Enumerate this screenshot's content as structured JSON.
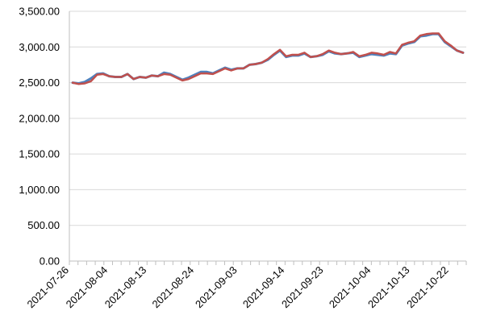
{
  "chart_data": {
    "type": "line",
    "title": "",
    "xlabel": "",
    "ylabel": "",
    "ylim": [
      0,
      3500
    ],
    "yticks": [
      0,
      500,
      1000,
      1500,
      2000,
      2500,
      3000,
      3500
    ],
    "ytick_labels": [
      "0.00",
      "500.00",
      "1,000.00",
      "1,500.00",
      "2,000.00",
      "2,500.00",
      "3,000.00",
      "3,500.00"
    ],
    "x_tick_labels": [
      "2021-07-26",
      "2021-08-04",
      "2021-08-13",
      "2021-08-24",
      "2021-09-03",
      "2021-09-14",
      "2021-09-23",
      "2021-10-04",
      "2021-10-13",
      "2021-10-22"
    ],
    "grid": {
      "y": true,
      "x": false
    },
    "legend": "none",
    "x_start": "2021-07-26",
    "x_end": "2021-10-26",
    "series": [
      {
        "color": "#4F81BD",
        "values": [
          2500,
          2490,
          2510,
          2560,
          2620,
          2630,
          2590,
          2580,
          2580,
          2620,
          2550,
          2580,
          2570,
          2600,
          2590,
          2640,
          2620,
          2580,
          2540,
          2570,
          2610,
          2650,
          2650,
          2630,
          2670,
          2710,
          2680,
          2700,
          2700,
          2750,
          2760,
          2780,
          2820,
          2890,
          2950,
          2860,
          2880,
          2880,
          2910,
          2860,
          2870,
          2890,
          2940,
          2910,
          2900,
          2910,
          2920,
          2860,
          2880,
          2900,
          2890,
          2880,
          2910,
          2900,
          3020,
          3050,
          3070,
          3150,
          3160,
          3180,
          3180,
          3070,
          3010,
          2950,
          2920
        ]
      },
      {
        "color": "#C0504D",
        "values": [
          2500,
          2480,
          2490,
          2520,
          2610,
          2620,
          2590,
          2580,
          2580,
          2620,
          2550,
          2580,
          2570,
          2600,
          2590,
          2620,
          2610,
          2570,
          2530,
          2550,
          2590,
          2630,
          2630,
          2620,
          2660,
          2700,
          2670,
          2700,
          2700,
          2750,
          2760,
          2780,
          2830,
          2900,
          2960,
          2870,
          2890,
          2890,
          2920,
          2860,
          2870,
          2900,
          2950,
          2920,
          2900,
          2910,
          2930,
          2870,
          2890,
          2920,
          2910,
          2890,
          2930,
          2910,
          3030,
          3060,
          3080,
          3160,
          3180,
          3190,
          3190,
          3080,
          3020,
          2950,
          2920
        ]
      }
    ]
  }
}
